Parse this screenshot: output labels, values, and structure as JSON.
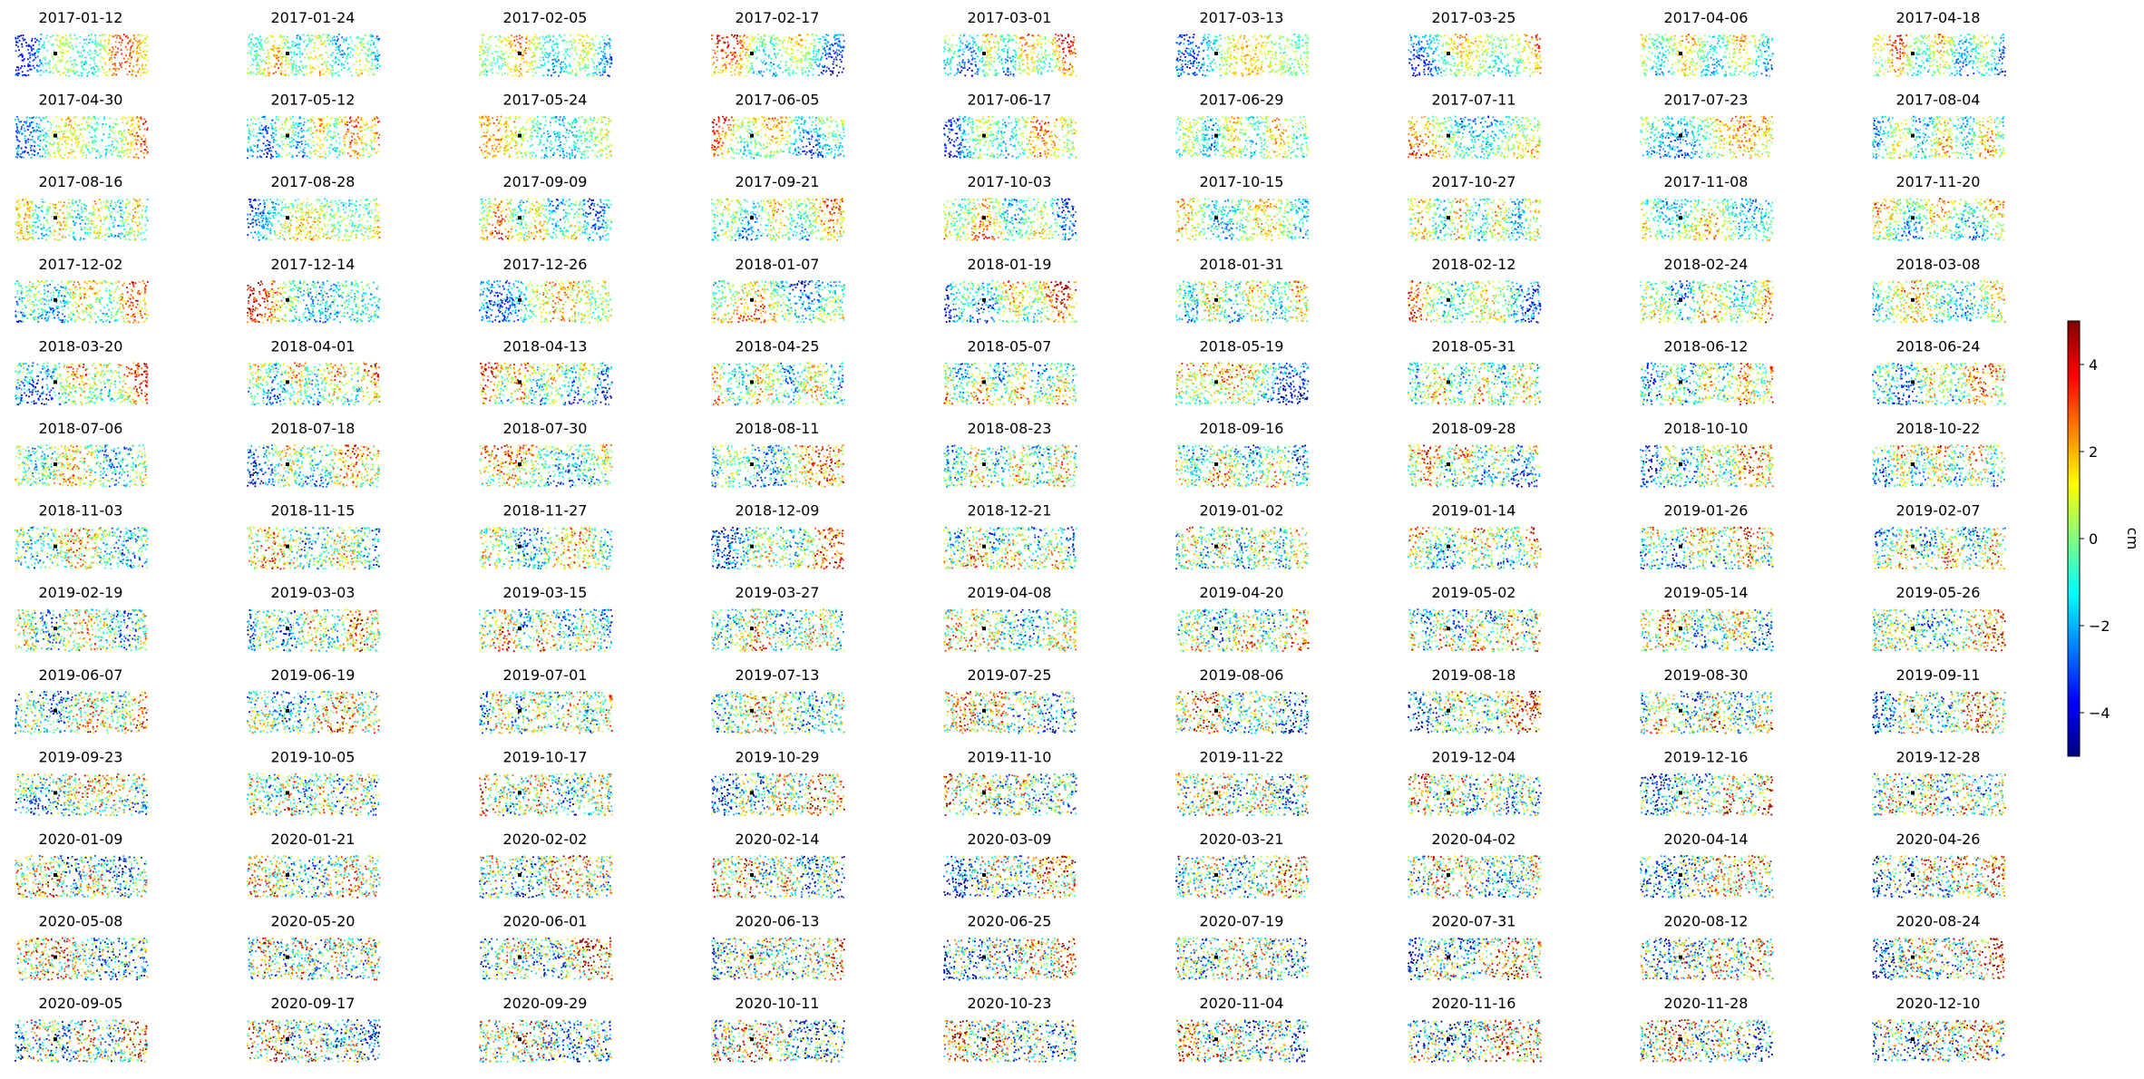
{
  "chart_data": {
    "type": "scatter",
    "title": "",
    "layout": {
      "rows": 13,
      "cols": 9
    },
    "panels": [
      "2017-01-12",
      "2017-01-24",
      "2017-02-05",
      "2017-02-17",
      "2017-03-01",
      "2017-03-13",
      "2017-03-25",
      "2017-04-06",
      "2017-04-18",
      "2017-04-30",
      "2017-05-12",
      "2017-05-24",
      "2017-06-05",
      "2017-06-17",
      "2017-06-29",
      "2017-07-11",
      "2017-07-23",
      "2017-08-04",
      "2017-08-16",
      "2017-08-28",
      "2017-09-09",
      "2017-09-21",
      "2017-10-03",
      "2017-10-15",
      "2017-10-27",
      "2017-11-08",
      "2017-11-20",
      "2017-12-02",
      "2017-12-14",
      "2017-12-26",
      "2018-01-07",
      "2018-01-19",
      "2018-01-31",
      "2018-02-12",
      "2018-02-24",
      "2018-03-08",
      "2018-03-20",
      "2018-04-01",
      "2018-04-13",
      "2018-04-25",
      "2018-05-07",
      "2018-05-19",
      "2018-05-31",
      "2018-06-12",
      "2018-06-24",
      "2018-07-06",
      "2018-07-18",
      "2018-07-30",
      "2018-08-11",
      "2018-08-23",
      "2018-09-16",
      "2018-09-28",
      "2018-10-10",
      "2018-10-22",
      "2018-11-03",
      "2018-11-15",
      "2018-11-27",
      "2018-12-09",
      "2018-12-21",
      "2019-01-02",
      "2019-01-14",
      "2019-01-26",
      "2019-02-07",
      "2019-02-19",
      "2019-03-03",
      "2019-03-15",
      "2019-03-27",
      "2019-04-08",
      "2019-04-20",
      "2019-05-02",
      "2019-05-14",
      "2019-05-26",
      "2019-06-07",
      "2019-06-19",
      "2019-07-01",
      "2019-07-13",
      "2019-07-25",
      "2019-08-06",
      "2019-08-18",
      "2019-08-30",
      "2019-09-11",
      "2019-09-23",
      "2019-10-05",
      "2019-10-17",
      "2019-10-29",
      "2019-11-10",
      "2019-11-22",
      "2019-12-04",
      "2019-12-16",
      "2019-12-28",
      "2020-01-09",
      "2020-01-21",
      "2020-02-02",
      "2020-02-14",
      "2020-03-09",
      "2020-03-21",
      "2020-04-02",
      "2020-04-14",
      "2020-04-26",
      "2020-05-08",
      "2020-05-20",
      "2020-06-01",
      "2020-06-13",
      "2020-06-25",
      "2020-07-19",
      "2020-07-31",
      "2020-08-12",
      "2020-08-24",
      "2020-09-05",
      "2020-09-17",
      "2020-09-29",
      "2020-10-11",
      "2020-10-23",
      "2020-11-04",
      "2020-11-16",
      "2020-11-28",
      "2020-12-10"
    ],
    "colorbar": {
      "label": "cm",
      "colormap": "jet",
      "vmin": -5,
      "vmax": 5,
      "ticks": [
        4,
        2,
        0,
        -2,
        -4
      ],
      "tick_labels": [
        "4",
        "2",
        "0",
        "−2",
        "−4"
      ],
      "colors": [
        "#00007f",
        "#0000ff",
        "#007fff",
        "#00ffff",
        "#7fff7f",
        "#ffff00",
        "#ff7f00",
        "#ff0000",
        "#7f0000"
      ]
    },
    "axes_visible": false,
    "grid": false,
    "reference_point_color": "#000000"
  }
}
